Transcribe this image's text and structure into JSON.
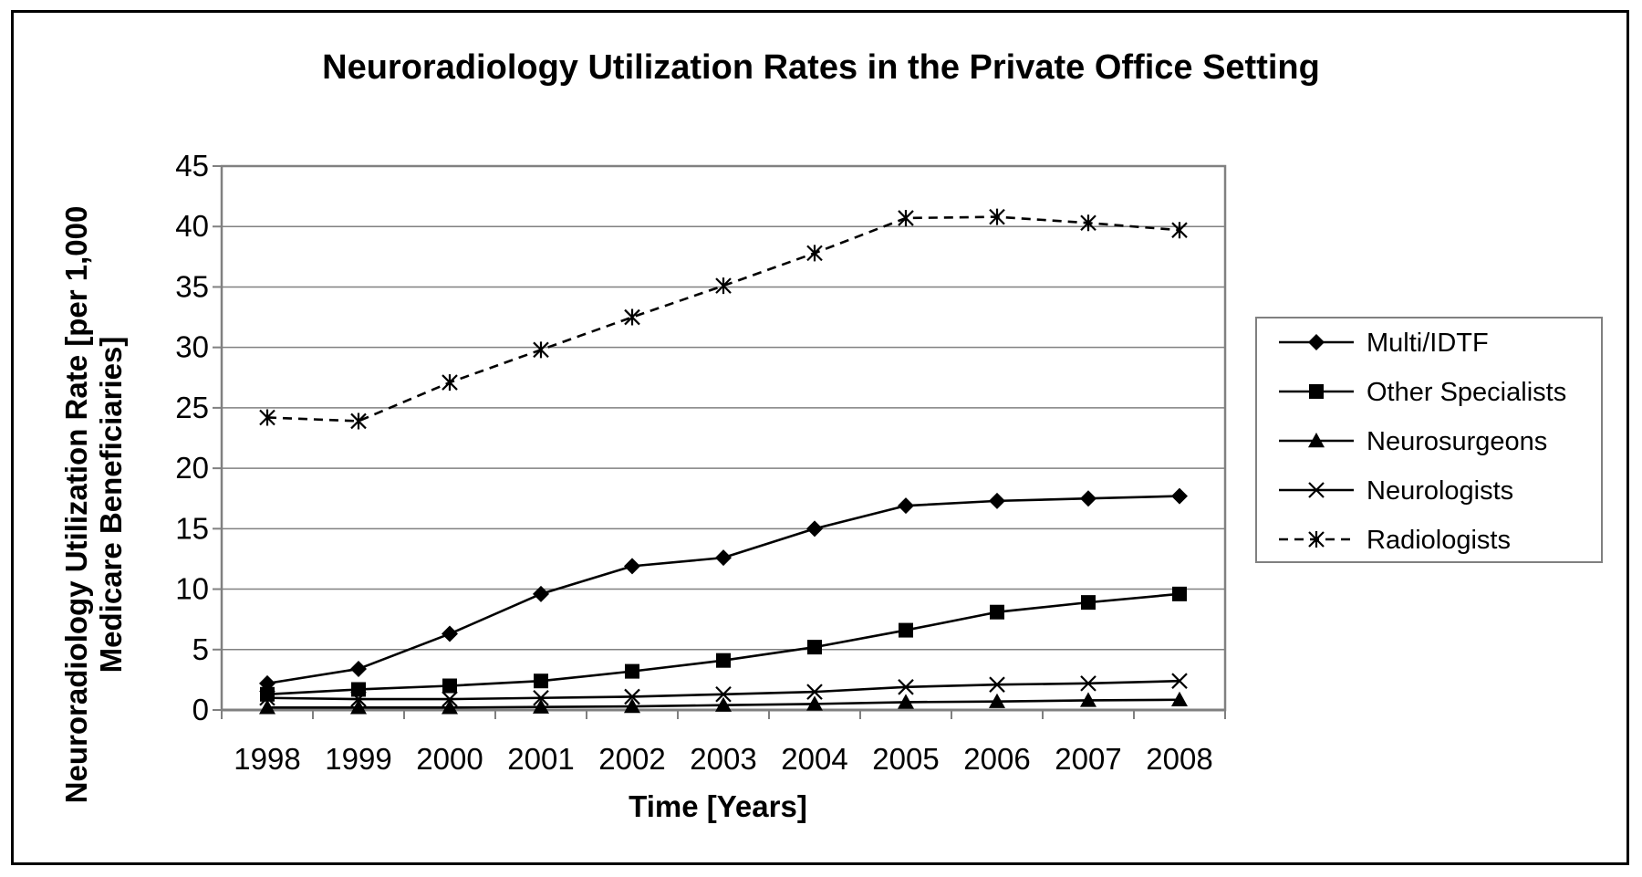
{
  "chart_data": {
    "type": "line",
    "title": "Neuroradiology Utilization Rates in the Private Office Setting",
    "xlabel": "Time [Years]",
    "ylabel_lines": [
      "Neuroradiology Utilization Rate [per 1,000",
      "Medicare Beneficiaries]"
    ],
    "x": [
      "1998",
      "1999",
      "2000",
      "2001",
      "2002",
      "2003",
      "2004",
      "2005",
      "2006",
      "2007",
      "2008"
    ],
    "ylim": [
      0,
      45
    ],
    "yticks": [
      0,
      5,
      10,
      15,
      20,
      25,
      30,
      35,
      40,
      45
    ],
    "grid": true,
    "legend_position": "right",
    "series": [
      {
        "name": "Multi/IDTF",
        "marker": "diamond",
        "dash": "solid",
        "values": [
          2.2,
          3.4,
          6.3,
          9.6,
          11.9,
          12.6,
          15.0,
          16.9,
          17.3,
          17.5,
          17.7
        ]
      },
      {
        "name": "Other Specialists",
        "marker": "square",
        "dash": "solid",
        "values": [
          1.3,
          1.7,
          2.0,
          2.4,
          3.2,
          4.1,
          5.2,
          6.6,
          8.1,
          8.9,
          9.6
        ]
      },
      {
        "name": "Neurosurgeons",
        "marker": "triangle",
        "dash": "solid",
        "values": [
          0.2,
          0.2,
          0.2,
          0.25,
          0.3,
          0.4,
          0.5,
          0.65,
          0.7,
          0.8,
          0.85
        ]
      },
      {
        "name": "Neurologists",
        "marker": "x",
        "dash": "solid",
        "values": [
          1.0,
          0.9,
          0.9,
          1.0,
          1.1,
          1.3,
          1.5,
          1.9,
          2.1,
          2.2,
          2.4
        ]
      },
      {
        "name": "Radiologists",
        "marker": "asterisk",
        "dash": "dashed",
        "values": [
          24.2,
          23.9,
          27.1,
          29.8,
          32.5,
          35.1,
          37.8,
          40.7,
          40.8,
          40.3,
          39.7
        ]
      }
    ]
  }
}
